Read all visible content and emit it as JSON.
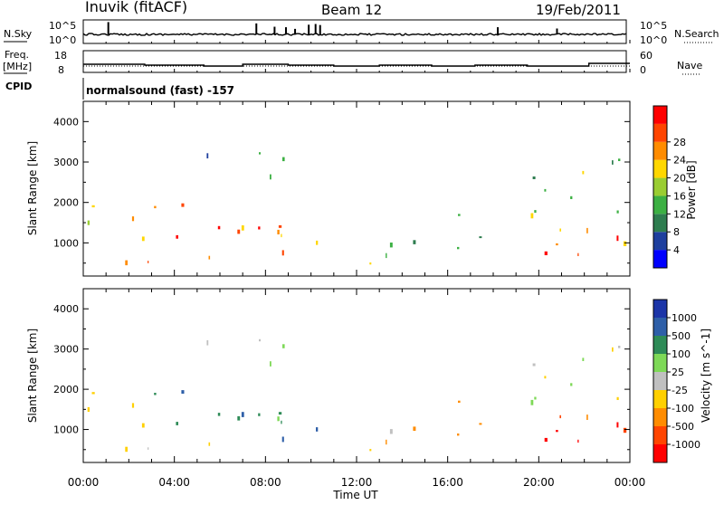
{
  "header": {
    "station": "Inuvik (fitACF)",
    "beam": "Beam 12",
    "date": "19/Feb/2011"
  },
  "panels": {
    "nsky_label": "N.Sky",
    "nsky_ticks": [
      "10^5",
      "10^0"
    ],
    "nsearch_label": "N.Search",
    "nsearch_ticks": [
      "10^5",
      "10^0"
    ],
    "freq_label_line1": "Freq.",
    "freq_label_line2": "[MHz]",
    "freq_ticks": [
      "18",
      "8"
    ],
    "nave_label": "Nave",
    "nave_ticks": [
      "60",
      "0"
    ],
    "cpid_label": "CPID",
    "cpid_text": "normalsound (fast) -157"
  },
  "colors": {
    "power_scale": [
      "#0000ff",
      "#1e3f9e",
      "#2e7d4f",
      "#3cb043",
      "#9acd32",
      "#ffd700",
      "#ff8c00",
      "#ff4500",
      "#ff0000"
    ],
    "velocity_scale": [
      "#ff0000",
      "#ff4500",
      "#ff8c00",
      "#ffd000",
      "#c0c0c0",
      "#7ed957",
      "#2e8b57",
      "#2e5fa8",
      "#1c35a8"
    ]
  },
  "chart_data": [
    {
      "type": "heatmap",
      "title": "Power",
      "ylabel": "Slant Range [km]",
      "xlabel": "",
      "x_ticks": [
        "00:00",
        "04:00",
        "08:00",
        "12:00",
        "16:00",
        "20:00",
        "00:00"
      ],
      "y_ticks": [
        "1000",
        "2000",
        "3000",
        "4000"
      ],
      "ylim": [
        180,
        4500
      ],
      "xlim_hours": [
        0,
        24
      ],
      "colorbar_label": "Power [dB]",
      "colorbar_ticks": [
        "4",
        "8",
        "12",
        "16",
        "20",
        "24",
        "28"
      ]
    },
    {
      "type": "heatmap",
      "title": "Velocity",
      "ylabel": "Slant Range [km]",
      "xlabel": "Time UT",
      "x_ticks": [
        "00:00",
        "04:00",
        "08:00",
        "12:00",
        "16:00",
        "20:00",
        "00:00"
      ],
      "y_ticks": [
        "1000",
        "2000",
        "3000",
        "4000"
      ],
      "ylim": [
        180,
        4500
      ],
      "xlim_hours": [
        0,
        24
      ],
      "colorbar_label": "Velocity [m s^-1]",
      "colorbar_ticks": [
        "1000",
        "500",
        "100",
        "25",
        "-25",
        "-100",
        "-500",
        "-1000"
      ]
    }
  ]
}
